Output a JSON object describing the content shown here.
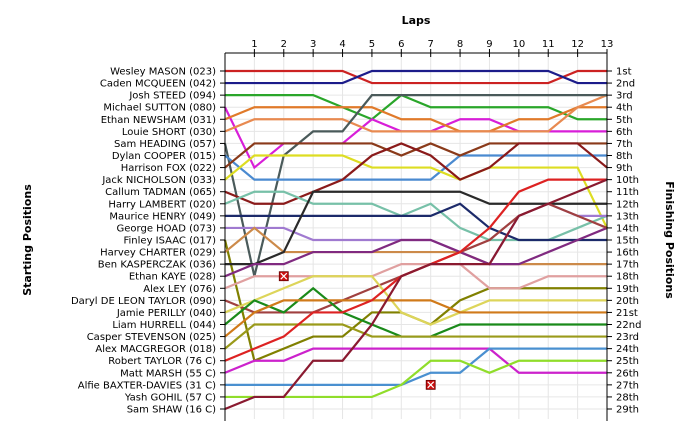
{
  "chart_data": {
    "type": "line",
    "title": "Laps",
    "ylabel_left": "Starting Positions",
    "ylabel_right": "Finishing Positions",
    "x_ticks": [
      1,
      2,
      3,
      4,
      5,
      6,
      7,
      8,
      9,
      10,
      11,
      12,
      13
    ],
    "x_range": [
      0,
      13
    ],
    "y_range": [
      1,
      29
    ],
    "grid": true,
    "finishing_labels": [
      "1st",
      "2nd",
      "3rd",
      "4th",
      "5th",
      "6th",
      "7th",
      "8th",
      "9th",
      "10th",
      "11th",
      "12th",
      "13th",
      "14th",
      "15th",
      "16th",
      "17th",
      "18th",
      "19th",
      "20th",
      "21st",
      "22nd",
      "23rd",
      "24th",
      "25th",
      "26th",
      "27th",
      "28th",
      "29th"
    ],
    "series": [
      {
        "name": "Wesley MASON (023)",
        "color": "#cc2222",
        "positions": [
          1,
          1,
          1,
          1,
          1,
          2,
          2,
          2,
          2,
          2,
          2,
          2,
          1,
          1
        ]
      },
      {
        "name": "Caden MCQUEEN (042)",
        "color": "#1c1c8a",
        "positions": [
          2,
          2,
          2,
          2,
          2,
          1,
          1,
          1,
          1,
          1,
          1,
          1,
          2,
          2
        ]
      },
      {
        "name": "Josh STEED (094)",
        "color": "#2aa62a",
        "positions": [
          3,
          3,
          3,
          3,
          4,
          5,
          3,
          4,
          4,
          4,
          4,
          4,
          5,
          5
        ]
      },
      {
        "name": "Michael SUTTON (080)",
        "color": "#d81ed8",
        "positions": [
          4,
          9,
          7,
          7,
          7,
          5,
          6,
          6,
          5,
          5,
          6,
          6,
          6,
          6
        ]
      },
      {
        "name": "Ethan NEWSHAM (031)",
        "color": "#e07a2a",
        "positions": [
          5,
          4,
          4,
          4,
          4,
          4,
          5,
          5,
          6,
          6,
          5,
          5,
          4,
          4
        ]
      },
      {
        "name": "Louie SHORT (030)",
        "color": "#e88a50",
        "positions": [
          6,
          5,
          5,
          5,
          5,
          6,
          6,
          6,
          6,
          6,
          6,
          6,
          4,
          3
        ]
      },
      {
        "name": "Sam HEADING (057)",
        "color": "#4a5a5a",
        "positions": [
          7,
          18,
          8,
          6,
          6,
          3,
          3,
          3,
          3,
          3,
          3,
          3,
          3,
          3
        ]
      },
      {
        "name": "Dylan COOPER (015)",
        "color": "#4a8ad0",
        "positions": [
          8,
          10,
          10,
          10,
          10,
          10,
          10,
          10,
          8,
          8,
          8,
          8,
          8,
          8
        ]
      },
      {
        "name": "Harrison FOX (022)",
        "color": "#8a3a1a",
        "positions": [
          9,
          7,
          7,
          7,
          7,
          7,
          8,
          7,
          8,
          7,
          7,
          7,
          7,
          7
        ]
      },
      {
        "name": "Jack NICHOLSON (033)",
        "color": "#dddd22",
        "positions": [
          10,
          8,
          8,
          8,
          8,
          9,
          9,
          9,
          10,
          9,
          9,
          9,
          9,
          14
        ]
      },
      {
        "name": "Callum TADMAN (065)",
        "color": "#8a1a1a",
        "positions": [
          11,
          12,
          12,
          11,
          10,
          8,
          7,
          8,
          10,
          9,
          7,
          7,
          7,
          9
        ]
      },
      {
        "name": "Harry LAMBERT (020)",
        "color": "#77c0a8",
        "positions": [
          12,
          11,
          11,
          12,
          12,
          12,
          13,
          12,
          14,
          15,
          15,
          15,
          14,
          13
        ]
      },
      {
        "name": "Maurice HENRY (049)",
        "color": "#1c2a6a",
        "positions": [
          13,
          13,
          13,
          13,
          13,
          13,
          13,
          13,
          12,
          14,
          15,
          15,
          15,
          15
        ]
      },
      {
        "name": "George HOAD (073)",
        "color": "#a07ad0",
        "positions": [
          14,
          14,
          14,
          15,
          15,
          15,
          15,
          15,
          16,
          17,
          13,
          12,
          13,
          13
        ]
      },
      {
        "name": "Finley ISAAC (017)",
        "color": "#808000",
        "positions": [
          15,
          25,
          24,
          23,
          23,
          21,
          21,
          22,
          20,
          19,
          19,
          19,
          19,
          19
        ]
      },
      {
        "name": "Harvey CHARTER (029)",
        "color": "#cc8a4a",
        "positions": [
          16,
          14,
          16,
          16,
          16,
          16,
          16,
          16,
          16,
          17,
          17,
          17,
          17,
          17
        ]
      },
      {
        "name": "Ben KASPERCZAK (036)",
        "color": "#2a2a2a",
        "positions": [
          17,
          17,
          16,
          11,
          11,
          11,
          11,
          11,
          11,
          12,
          12,
          12,
          12,
          12
        ]
      },
      {
        "name": "Ethan KAYE (028)",
        "color": "#802a80",
        "positions": [
          18,
          17,
          17,
          16,
          16,
          16,
          15,
          15,
          16,
          17,
          17,
          16,
          15,
          14
        ]
      },
      {
        "name": "Alex LEY (076)",
        "color": "#e0a0a0",
        "positions": [
          19,
          18,
          18,
          18,
          18,
          18,
          17,
          17,
          17,
          19,
          19,
          18,
          18,
          18
        ]
      },
      {
        "name": "Daryl DE LEON TAYLOR (090)",
        "color": "#a04040",
        "positions": [
          20,
          21,
          21,
          21,
          20,
          19,
          18,
          17,
          16,
          15,
          13,
          12,
          13,
          14
        ]
      },
      {
        "name": "Jamie PERILLY (040)",
        "color": "#ddd55a",
        "positions": [
          21,
          20,
          19,
          18,
          18,
          18,
          21,
          22,
          21,
          20,
          20,
          20,
          20,
          20
        ]
      },
      {
        "name": "Liam HURRELL (044)",
        "color": "#1a8a1a",
        "positions": [
          22,
          20,
          21,
          19,
          21,
          22,
          23,
          23,
          22,
          22,
          22,
          22,
          22,
          22
        ]
      },
      {
        "name": "Casper STEVENSON (025)",
        "color": "#d07a1a",
        "positions": [
          23,
          21,
          20,
          20,
          20,
          20,
          20,
          20,
          21,
          21,
          21,
          21,
          21,
          21
        ]
      },
      {
        "name": "Alex MACGREGOR (018)",
        "color": "#9a9a1a",
        "positions": [
          24,
          22,
          22,
          22,
          22,
          23,
          23,
          23,
          23,
          23,
          23,
          23,
          23,
          23
        ]
      },
      {
        "name": "Robert TAYLOR (76 C)",
        "color": "#dd2222",
        "positions": [
          25,
          24,
          23,
          21,
          21,
          20,
          18,
          17,
          16,
          14,
          11,
          10,
          10,
          10
        ]
      },
      {
        "name": "Matt MARSH (55 C)",
        "color": "#cc22cc",
        "positions": [
          26,
          25,
          25,
          24,
          24,
          24,
          24,
          24,
          24,
          24,
          26,
          26,
          26,
          26
        ]
      },
      {
        "name": "Alfie BAXTER-DAVIES (31 C)",
        "color": "#4a90d0",
        "positions": [
          27,
          27,
          27,
          27,
          27,
          27,
          27,
          26,
          26,
          24,
          24,
          24,
          24,
          24
        ]
      },
      {
        "name": "Yash GOHIL (57 C)",
        "color": "#90dd2a",
        "positions": [
          28,
          28,
          28,
          28,
          28,
          28,
          27,
          25,
          25,
          26,
          25,
          25,
          25,
          25
        ]
      },
      {
        "name": "Sam SHAW (16 C)",
        "color": "#8a1a30",
        "positions": [
          29,
          28,
          28,
          25,
          25,
          22,
          18,
          17,
          17,
          17,
          13,
          12,
          11,
          10
        ]
      }
    ],
    "retirements": [
      {
        "series": "Ethan KAYE (028)",
        "lap": 2,
        "position": 18
      },
      {
        "series": "Alfie BAXTER-DAVIES (31 C)",
        "lap": 7,
        "position": 27
      }
    ]
  }
}
